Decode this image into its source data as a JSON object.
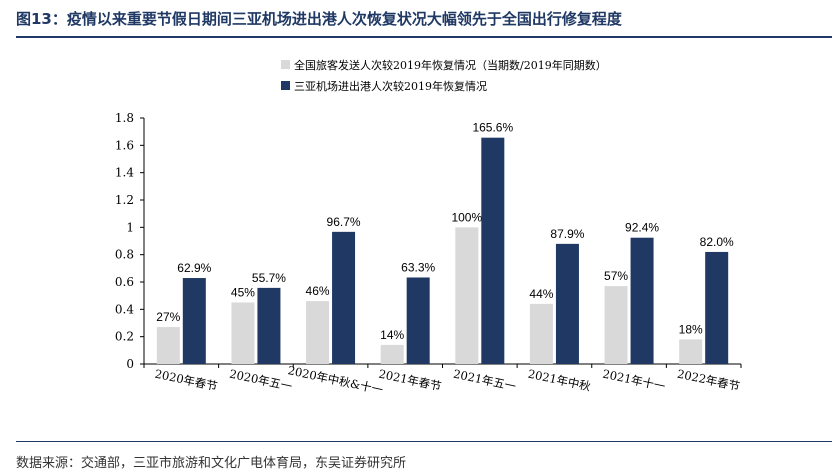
{
  "figure": {
    "title": "图13：疫情以来重要节假日期间三亚机场进出港人次恢复状况大幅领先于全国出行修复程度",
    "source": "数据来源：交通部，三亚市旅游和文化广电体育局，东吴证券研究所"
  },
  "chart_data": {
    "type": "bar",
    "categories": [
      "2020年春节",
      "2020年五一",
      "2020年中秋&十一",
      "2021年春节",
      "2021年五一",
      "2021年中秋",
      "2021年十一",
      "2022年春节"
    ],
    "series": [
      {
        "name": "全国旅客发送人次较2019年恢复情况（当期数/2019年同期数）",
        "values": [
          0.27,
          0.45,
          0.46,
          0.14,
          1.0,
          0.44,
          0.57,
          0.18
        ],
        "labels": [
          "27%",
          "45%",
          "46%",
          "14%",
          "100%",
          "44%",
          "57%",
          "18%"
        ],
        "color": "#d9d9d9"
      },
      {
        "name": "三亚机场进出港人次较2019年恢复情况",
        "values": [
          0.629,
          0.557,
          0.967,
          0.633,
          1.656,
          0.879,
          0.924,
          0.82
        ],
        "labels": [
          "62.9%",
          "55.7%",
          "96.7%",
          "63.3%",
          "165.6%",
          "87.9%",
          "92.4%",
          "82.0%"
        ],
        "color": "#1f3864"
      }
    ],
    "yticks": [
      "0",
      "0.2",
      "0.4",
      "0.6",
      "0.8",
      "1",
      "1.2",
      "1.4",
      "1.6",
      "1.8"
    ],
    "ylim": [
      0,
      1.8
    ],
    "legend_position": "top",
    "grid": false
  }
}
